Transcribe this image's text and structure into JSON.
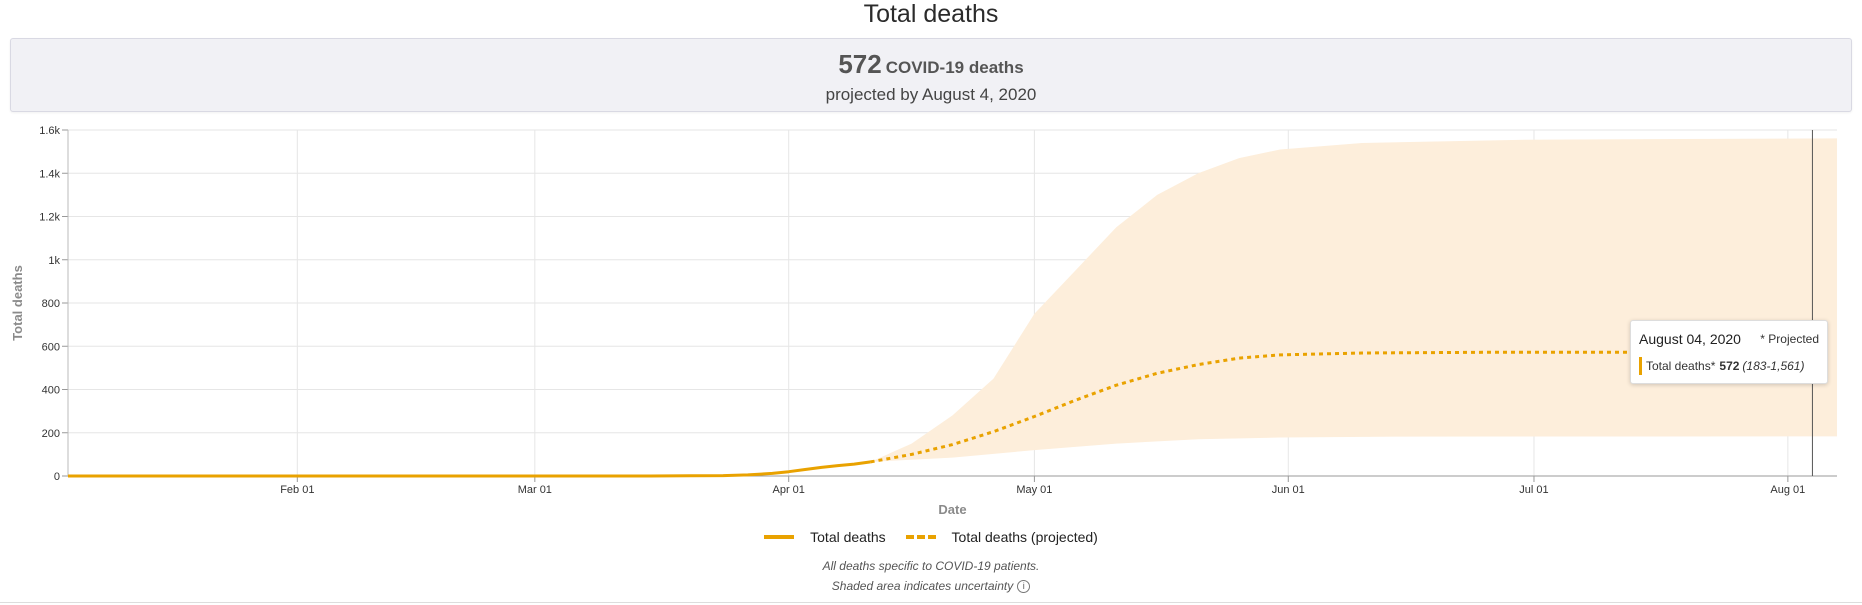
{
  "page": {
    "title": "Total deaths",
    "summary_number": "572",
    "summary_unit": "COVID-19 deaths",
    "summary_subtitle": "projected by August 4, 2020"
  },
  "tooltip": {
    "date": "August 04, 2020",
    "flag": "* Projected",
    "label": "Total deaths*",
    "value": "572",
    "range": "(183-1,561)"
  },
  "legend": {
    "actual": "Total deaths",
    "projected": "Total deaths (projected)"
  },
  "footnotes": {
    "line1": "All deaths specific to COVID-19 patients.",
    "line2": "Shaded area indicates uncertainty",
    "info_icon": "i"
  },
  "colors": {
    "series": "#e9a200",
    "band": "#fdeedb",
    "grid": "#e6e6e6"
  },
  "chart_data": {
    "type": "line",
    "xlabel": "Date",
    "ylabel": "Total deaths",
    "x_range": [
      "2020-01-04",
      "2020-08-07"
    ],
    "ylim": [
      0,
      1600
    ],
    "x_ticks": [
      {
        "date": "2020-02-01",
        "label": "Feb 01"
      },
      {
        "date": "2020-03-01",
        "label": "Mar 01"
      },
      {
        "date": "2020-04-01",
        "label": "Apr 01"
      },
      {
        "date": "2020-05-01",
        "label": "May 01"
      },
      {
        "date": "2020-06-01",
        "label": "Jun 01"
      },
      {
        "date": "2020-07-01",
        "label": "Jul 01"
      },
      {
        "date": "2020-08-01",
        "label": "Aug 01"
      }
    ],
    "y_ticks": [
      {
        "value": 0,
        "label": "0"
      },
      {
        "value": 200,
        "label": "200"
      },
      {
        "value": 400,
        "label": "400"
      },
      {
        "value": 600,
        "label": "600"
      },
      {
        "value": 800,
        "label": "800"
      },
      {
        "value": 1000,
        "label": "1k"
      },
      {
        "value": 1200,
        "label": "1.2k"
      },
      {
        "value": 1400,
        "label": "1.4k"
      },
      {
        "value": 1600,
        "label": "1.6k"
      }
    ],
    "grid": true,
    "legend_position": "bottom-center",
    "series": [
      {
        "name": "Total deaths",
        "style": "solid",
        "points": [
          [
            "2020-01-04",
            0
          ],
          [
            "2020-03-15",
            0
          ],
          [
            "2020-03-20",
            1
          ],
          [
            "2020-03-24",
            2
          ],
          [
            "2020-03-27",
            5
          ],
          [
            "2020-03-30",
            12
          ],
          [
            "2020-04-01",
            20
          ],
          [
            "2020-04-03",
            30
          ],
          [
            "2020-04-05",
            40
          ],
          [
            "2020-04-07",
            48
          ],
          [
            "2020-04-09",
            55
          ],
          [
            "2020-04-11",
            65
          ]
        ]
      },
      {
        "name": "Total deaths (projected)",
        "style": "dashed",
        "points": [
          [
            "2020-04-11",
            65
          ],
          [
            "2020-04-16",
            100
          ],
          [
            "2020-04-21",
            145
          ],
          [
            "2020-04-26",
            205
          ],
          [
            "2020-05-01",
            275
          ],
          [
            "2020-05-06",
            350
          ],
          [
            "2020-05-11",
            420
          ],
          [
            "2020-05-16",
            475
          ],
          [
            "2020-05-21",
            515
          ],
          [
            "2020-05-26",
            545
          ],
          [
            "2020-05-31",
            560
          ],
          [
            "2020-06-10",
            569
          ],
          [
            "2020-06-25",
            572
          ],
          [
            "2020-08-04",
            572
          ]
        ]
      }
    ],
    "uncertainty_band": {
      "lower": [
        [
          "2020-04-11",
          65
        ],
        [
          "2020-04-21",
          85
        ],
        [
          "2020-05-01",
          120
        ],
        [
          "2020-05-11",
          150
        ],
        [
          "2020-05-21",
          170
        ],
        [
          "2020-05-31",
          178
        ],
        [
          "2020-06-15",
          182
        ],
        [
          "2020-08-07",
          183
        ]
      ],
      "upper": [
        [
          "2020-04-11",
          65
        ],
        [
          "2020-04-16",
          150
        ],
        [
          "2020-04-21",
          280
        ],
        [
          "2020-04-26",
          450
        ],
        [
          "2020-05-01",
          750
        ],
        [
          "2020-05-06",
          950
        ],
        [
          "2020-05-11",
          1150
        ],
        [
          "2020-05-16",
          1300
        ],
        [
          "2020-05-21",
          1400
        ],
        [
          "2020-05-26",
          1470
        ],
        [
          "2020-05-31",
          1510
        ],
        [
          "2020-06-10",
          1540
        ],
        [
          "2020-06-30",
          1555
        ],
        [
          "2020-08-07",
          1561
        ]
      ]
    }
  }
}
